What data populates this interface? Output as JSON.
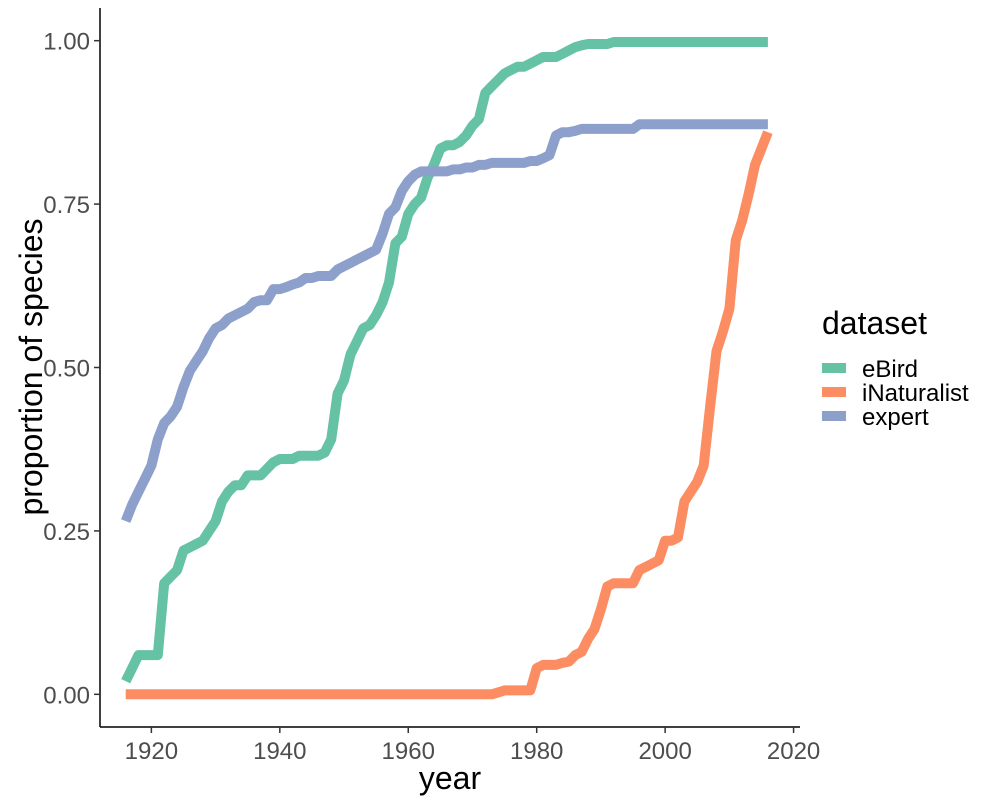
{
  "chart_data": {
    "type": "line",
    "title": "",
    "xlabel": "year",
    "ylabel": "proportion of species",
    "xlim": [
      1912,
      2021
    ],
    "ylim": [
      -0.05,
      1.05
    ],
    "x_ticks": [
      1920,
      1940,
      1960,
      1980,
      2000,
      2020
    ],
    "x_tick_labels": [
      "1920",
      "1940",
      "1960",
      "1980",
      "2000",
      "2020"
    ],
    "y_ticks": [
      0,
      0.25,
      0.5,
      0.75,
      1.0
    ],
    "y_tick_labels": [
      "0.00",
      "0.25",
      "0.50",
      "0.75",
      "1.00"
    ],
    "grid": false,
    "legend": {
      "title": "dataset",
      "position": "right"
    },
    "series": [
      {
        "name": "eBird",
        "color": "#66c2a5",
        "x": [
          1916,
          1917,
          1918,
          1919,
          1920,
          1921,
          1922,
          1923,
          1924,
          1925,
          1926,
          1927,
          1928,
          1929,
          1930,
          1931,
          1932,
          1933,
          1934,
          1935,
          1936,
          1937,
          1938,
          1939,
          1940,
          1941,
          1942,
          1943,
          1944,
          1945,
          1946,
          1947,
          1948,
          1949,
          1950,
          1951,
          1952,
          1953,
          1954,
          1955,
          1956,
          1957,
          1958,
          1959,
          1960,
          1961,
          1962,
          1963,
          1964,
          1965,
          1966,
          1967,
          1968,
          1969,
          1970,
          1971,
          1972,
          1973,
          1974,
          1975,
          1976,
          1977,
          1978,
          1979,
          1980,
          1981,
          1982,
          1983,
          1984,
          1985,
          1986,
          1987,
          1988,
          1989,
          1990,
          1991,
          1992,
          1993,
          1994,
          1995,
          1996,
          2000,
          2005,
          2010,
          2016
        ],
        "y": [
          0.02,
          0.04,
          0.06,
          0.06,
          0.06,
          0.06,
          0.17,
          0.18,
          0.19,
          0.22,
          0.225,
          0.23,
          0.235,
          0.25,
          0.265,
          0.295,
          0.31,
          0.32,
          0.32,
          0.335,
          0.335,
          0.335,
          0.345,
          0.355,
          0.36,
          0.36,
          0.36,
          0.365,
          0.365,
          0.365,
          0.365,
          0.37,
          0.39,
          0.46,
          0.48,
          0.52,
          0.54,
          0.56,
          0.565,
          0.58,
          0.6,
          0.63,
          0.69,
          0.7,
          0.735,
          0.75,
          0.76,
          0.79,
          0.81,
          0.835,
          0.84,
          0.84,
          0.845,
          0.855,
          0.87,
          0.88,
          0.92,
          0.93,
          0.94,
          0.95,
          0.955,
          0.96,
          0.96,
          0.965,
          0.97,
          0.975,
          0.975,
          0.975,
          0.98,
          0.985,
          0.99,
          0.993,
          0.995,
          0.995,
          0.995,
          0.995,
          0.998,
          0.998,
          0.998,
          0.998,
          0.998,
          0.998,
          0.998,
          0.998,
          0.998
        ]
      },
      {
        "name": "iNaturalist",
        "color": "#fc8d62",
        "x": [
          1916,
          1973,
          1974,
          1975,
          1976,
          1977,
          1978,
          1979,
          1980,
          1981,
          1982,
          1983,
          1984,
          1985,
          1986,
          1987,
          1988,
          1989,
          1990,
          1991,
          1992,
          1993,
          1994,
          1995,
          1996,
          1997,
          1998,
          1999,
          2000,
          2001,
          2002,
          2003,
          2004,
          2005,
          2006,
          2007,
          2008,
          2009,
          2010,
          2011,
          2012,
          2013,
          2014,
          2015,
          2016
        ],
        "y": [
          0.0,
          0.0,
          0.003,
          0.006,
          0.006,
          0.006,
          0.006,
          0.006,
          0.04,
          0.045,
          0.045,
          0.045,
          0.048,
          0.05,
          0.06,
          0.065,
          0.085,
          0.1,
          0.13,
          0.165,
          0.17,
          0.17,
          0.17,
          0.17,
          0.19,
          0.195,
          0.2,
          0.205,
          0.235,
          0.235,
          0.24,
          0.295,
          0.31,
          0.325,
          0.35,
          0.44,
          0.525,
          0.555,
          0.59,
          0.695,
          0.725,
          0.765,
          0.81,
          0.835,
          0.86
        ]
      },
      {
        "name": "expert",
        "color": "#8da0cb",
        "x": [
          1916,
          1917,
          1918,
          1919,
          1920,
          1921,
          1922,
          1923,
          1924,
          1925,
          1926,
          1927,
          1928,
          1929,
          1930,
          1931,
          1932,
          1933,
          1934,
          1935,
          1936,
          1937,
          1938,
          1939,
          1940,
          1941,
          1942,
          1943,
          1944,
          1945,
          1946,
          1947,
          1948,
          1949,
          1950,
          1951,
          1952,
          1953,
          1954,
          1955,
          1956,
          1957,
          1958,
          1959,
          1960,
          1961,
          1962,
          1963,
          1964,
          1965,
          1966,
          1967,
          1968,
          1969,
          1970,
          1971,
          1972,
          1973,
          1974,
          1975,
          1976,
          1977,
          1978,
          1979,
          1980,
          1981,
          1982,
          1983,
          1984,
          1985,
          1986,
          1987,
          1988,
          1989,
          1990,
          1991,
          1992,
          1993,
          1994,
          1995,
          1996,
          2000,
          2005,
          2010,
          2016
        ],
        "y": [
          0.265,
          0.29,
          0.31,
          0.33,
          0.35,
          0.39,
          0.415,
          0.425,
          0.44,
          0.47,
          0.495,
          0.51,
          0.525,
          0.545,
          0.56,
          0.565,
          0.575,
          0.58,
          0.585,
          0.59,
          0.6,
          0.603,
          0.603,
          0.62,
          0.62,
          0.623,
          0.627,
          0.63,
          0.637,
          0.637,
          0.64,
          0.64,
          0.64,
          0.65,
          0.655,
          0.66,
          0.665,
          0.67,
          0.675,
          0.68,
          0.705,
          0.735,
          0.745,
          0.77,
          0.785,
          0.795,
          0.8,
          0.8,
          0.8,
          0.8,
          0.8,
          0.803,
          0.803,
          0.806,
          0.806,
          0.81,
          0.81,
          0.813,
          0.813,
          0.813,
          0.813,
          0.813,
          0.813,
          0.816,
          0.816,
          0.82,
          0.825,
          0.855,
          0.86,
          0.86,
          0.862,
          0.865,
          0.865,
          0.865,
          0.865,
          0.865,
          0.865,
          0.865,
          0.865,
          0.865,
          0.872,
          0.872,
          0.872,
          0.872,
          0.872
        ]
      }
    ]
  }
}
